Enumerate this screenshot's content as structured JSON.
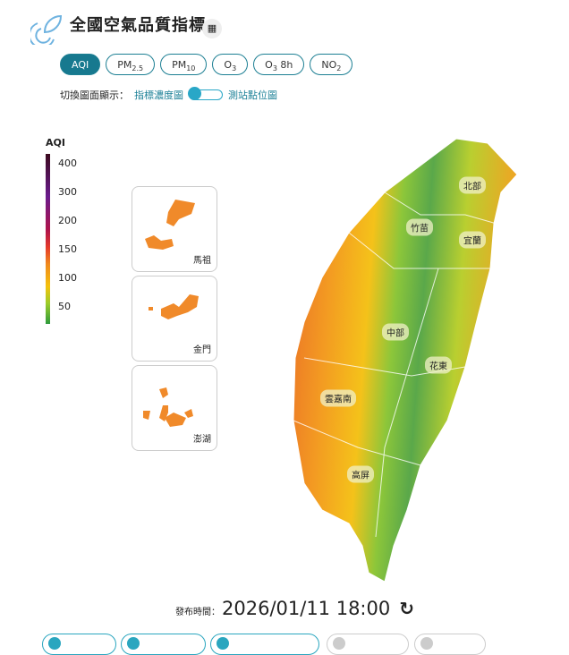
{
  "header": {
    "title": "全國空氣品質指標",
    "calc_icon": "calculator-icon",
    "logo_icon": "leaf-logo-icon"
  },
  "tabs": [
    {
      "label": "AQI",
      "active": true
    },
    {
      "label": "PM",
      "sub": "2.5"
    },
    {
      "label": "PM",
      "sub": "10"
    },
    {
      "label": "O",
      "sub": "3"
    },
    {
      "label": "O",
      "sub": "3",
      "suffix": " 8h"
    },
    {
      "label": "NO",
      "sub": "2"
    }
  ],
  "toggle": {
    "prefix": "切換圖面顯示：",
    "left": "指標濃度圖",
    "right": "測站點位圖",
    "state": "left"
  },
  "legend": {
    "title": "AQI",
    "ticks": [
      "400",
      "300",
      "200",
      "150",
      "100",
      "50"
    ]
  },
  "insets": [
    "馬祖",
    "金門",
    "澎湖"
  ],
  "regions": [
    "北部",
    "竹苗",
    "宜蘭",
    "中部",
    "花東",
    "雲嘉南",
    "高屏"
  ],
  "publish": {
    "label": "發布時間：",
    "value": "2026/01/11 18:00",
    "refresh_icon": "refresh-icon"
  },
  "colors": {
    "accent": "#17798f",
    "teal": "#29a7c7"
  }
}
